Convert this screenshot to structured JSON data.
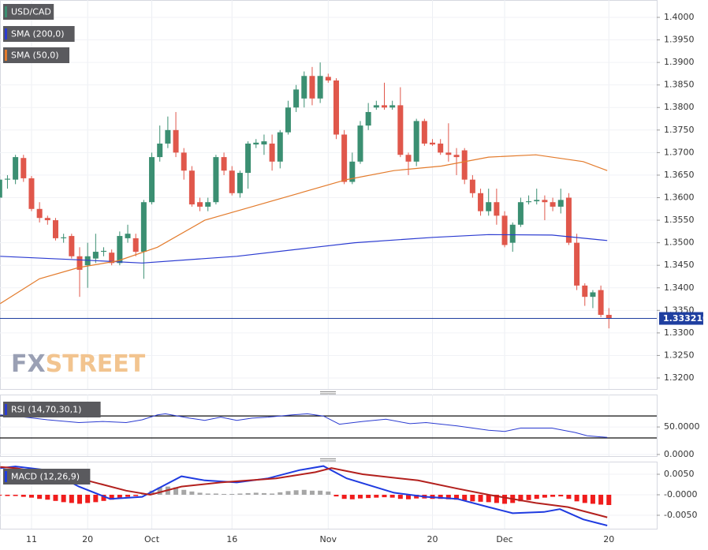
{
  "chart_data": [
    {
      "type": "candlestick",
      "name": "USD/CAD",
      "up_color": "#3b8f72",
      "down_color": "#e0574b",
      "open": [
        1.36,
        1.364,
        1.364,
        1.3688,
        1.3643,
        1.3575,
        1.3555,
        1.355,
        1.351,
        1.3515,
        1.347,
        1.345,
        1.3465,
        1.348,
        1.3478,
        1.3455,
        1.351,
        1.351,
        1.348,
        1.359,
        1.369,
        1.372,
        1.375,
        1.37,
        1.366,
        1.359,
        1.358,
        1.359,
        1.369,
        1.366,
        1.361,
        1.3655,
        1.3718,
        1.3718,
        1.372,
        1.368,
        1.3745,
        1.38,
        1.382,
        1.387,
        1.382,
        1.3868,
        1.386,
        1.374,
        1.3635,
        1.368,
        1.376,
        1.38,
        1.3805,
        1.38,
        1.3805,
        1.3695,
        1.368,
        1.377,
        1.3722,
        1.372,
        1.37,
        1.3695,
        1.3705,
        1.364,
        1.361,
        1.357,
        1.359,
        1.356,
        1.35,
        1.354,
        1.359,
        1.3592,
        1.3595,
        1.359,
        1.358,
        1.36,
        1.35,
        1.3405,
        1.338,
        1.3395,
        1.334
      ],
      "high": [
        1.365,
        1.365,
        1.3695,
        1.3695,
        1.3648,
        1.359,
        1.356,
        1.3555,
        1.352,
        1.352,
        1.349,
        1.35,
        1.352,
        1.349,
        1.3485,
        1.3525,
        1.354,
        1.352,
        1.3595,
        1.37,
        1.376,
        1.378,
        1.379,
        1.371,
        1.367,
        1.36,
        1.36,
        1.3695,
        1.37,
        1.367,
        1.366,
        1.3725,
        1.373,
        1.374,
        1.374,
        1.375,
        1.3815,
        1.385,
        1.388,
        1.389,
        1.39,
        1.3875,
        1.3865,
        1.375,
        1.37,
        1.377,
        1.381,
        1.3815,
        1.3855,
        1.3815,
        1.3845,
        1.37,
        1.3775,
        1.3775,
        1.373,
        1.373,
        1.3765,
        1.371,
        1.371,
        1.365,
        1.362,
        1.362,
        1.362,
        1.357,
        1.3545,
        1.36,
        1.3605,
        1.362,
        1.3605,
        1.36,
        1.362,
        1.361,
        1.352,
        1.341,
        1.3395,
        1.3405,
        1.3355
      ],
      "low": [
        1.359,
        1.362,
        1.363,
        1.3635,
        1.357,
        1.3545,
        1.354,
        1.3505,
        1.35,
        1.3465,
        1.338,
        1.34,
        1.3455,
        1.347,
        1.345,
        1.345,
        1.35,
        1.347,
        1.342,
        1.3585,
        1.368,
        1.371,
        1.369,
        1.364,
        1.358,
        1.357,
        1.357,
        1.3585,
        1.365,
        1.3605,
        1.36,
        1.362,
        1.371,
        1.3695,
        1.366,
        1.3665,
        1.374,
        1.379,
        1.38,
        1.3805,
        1.381,
        1.3855,
        1.373,
        1.363,
        1.363,
        1.3675,
        1.375,
        1.3795,
        1.3795,
        1.3795,
        1.369,
        1.365,
        1.367,
        1.3715,
        1.3715,
        1.3695,
        1.368,
        1.365,
        1.363,
        1.36,
        1.356,
        1.356,
        1.354,
        1.349,
        1.348,
        1.3535,
        1.3585,
        1.3585,
        1.355,
        1.357,
        1.3565,
        1.3495,
        1.3395,
        1.336,
        1.3355,
        1.3335,
        1.331
      ],
      "close": [
        1.364,
        1.3642,
        1.369,
        1.3643,
        1.3575,
        1.3555,
        1.355,
        1.351,
        1.3512,
        1.347,
        1.344,
        1.347,
        1.348,
        1.3482,
        1.3455,
        1.3515,
        1.352,
        1.348,
        1.359,
        1.369,
        1.372,
        1.375,
        1.37,
        1.366,
        1.3585,
        1.358,
        1.359,
        1.369,
        1.366,
        1.361,
        1.3655,
        1.372,
        1.3722,
        1.3725,
        1.368,
        1.3745,
        1.38,
        1.384,
        1.387,
        1.382,
        1.387,
        1.386,
        1.374,
        1.3635,
        1.368,
        1.376,
        1.379,
        1.3805,
        1.38,
        1.3805,
        1.3695,
        1.368,
        1.377,
        1.372,
        1.3718,
        1.37,
        1.3695,
        1.369,
        1.364,
        1.361,
        1.357,
        1.359,
        1.356,
        1.3495,
        1.354,
        1.359,
        1.3592,
        1.3595,
        1.359,
        1.358,
        1.3595,
        1.35,
        1.3405,
        1.338,
        1.339,
        1.334,
        1.3332
      ],
      "overlays": [
        {
          "name": "SMA (200,0)",
          "color": "#2b3bd1",
          "x": [
            0.1,
            9.9,
            17.8,
            29.6,
            39.4,
            44.3,
            54.1,
            61,
            68.9,
            75.8
          ],
          "values": [
            1.347,
            1.3462,
            1.3455,
            1.347,
            1.349,
            1.35,
            1.3512,
            1.3518,
            1.3517,
            1.3505
          ]
        },
        {
          "name": "SMA (50,0)",
          "color": "#e37b2c",
          "x": [
            0.1,
            5,
            9.9,
            14.8,
            19.7,
            25.6,
            31.5,
            37.4,
            43.3,
            49.2,
            55.1,
            61,
            66.9,
            72.8,
            75.8
          ],
          "values": [
            1.3365,
            1.342,
            1.3445,
            1.346,
            1.349,
            1.355,
            1.358,
            1.361,
            1.364,
            1.366,
            1.367,
            1.369,
            1.3695,
            1.368,
            1.366
          ]
        }
      ],
      "last_price": 1.33321,
      "last_price_label": "1.333210",
      "last_price_color": "#1f3fa0",
      "watermark": [
        "FX",
        "STREET"
      ],
      "xlim": [
        0.07,
        81.97
      ],
      "ylim": [
        1.31755,
        1.40385
      ],
      "yticks": [
        {
          "value": 1.4,
          "label": "1.4000"
        },
        {
          "value": 1.395,
          "label": "1.3950"
        },
        {
          "value": 1.39,
          "label": "1.3900"
        },
        {
          "value": 1.385,
          "label": "1.3850"
        },
        {
          "value": 1.38,
          "label": "1.3800"
        },
        {
          "value": 1.375,
          "label": "1.3750"
        },
        {
          "value": 1.37,
          "label": "1.3700"
        },
        {
          "value": 1.365,
          "label": "1.3650"
        },
        {
          "value": 1.36,
          "label": "1.3600"
        },
        {
          "value": 1.355,
          "label": "1.3550"
        },
        {
          "value": 1.35,
          "label": "1.3500"
        },
        {
          "value": 1.345,
          "label": "1.3450"
        },
        {
          "value": 1.34,
          "label": "1.3400"
        },
        {
          "value": 1.335,
          "label": "1.3350"
        },
        {
          "value": 1.33,
          "label": "1.3300"
        },
        {
          "value": 1.325,
          "label": "1.3250"
        },
        {
          "value": 1.32,
          "label": "1.3200"
        }
      ],
      "xticks": [
        {
          "value": 4,
          "label": "11"
        },
        {
          "value": 11,
          "label": "20"
        },
        {
          "value": 19,
          "label": "Oct"
        },
        {
          "value": 29,
          "label": "16"
        },
        {
          "value": 41,
          "label": "Nov"
        },
        {
          "value": 54,
          "label": "20"
        },
        {
          "value": 63,
          "label": "Dec"
        },
        {
          "value": 76,
          "label": "20"
        }
      ]
    },
    {
      "type": "line",
      "title": "RSI (14,70,30,1)",
      "series": [
        {
          "color": "#2b3bd1",
          "x": [
            0.1,
            2,
            6,
            9.9,
            12.9,
            15.8,
            17.8,
            19.7,
            20.7,
            23.7,
            25.6,
            27.6,
            29.6,
            31.5,
            33.5,
            36.5,
            38.4,
            40.4,
            42.4,
            45.3,
            48.2,
            51.2,
            53.2,
            57.1,
            61,
            63,
            65,
            68.9,
            71.8,
            73.3,
            75.8
          ],
          "values": [
            72,
            70,
            63,
            58,
            60,
            58,
            63,
            72,
            74,
            66,
            62,
            68,
            62,
            66,
            68,
            72,
            74,
            70,
            55,
            60,
            64,
            56,
            58,
            52,
            44,
            42,
            48,
            48,
            40,
            34,
            31
          ]
        }
      ],
      "levels": [
        70,
        30
      ],
      "ylim": [
        -3,
        109
      ],
      "yticks": [
        {
          "value": 50,
          "label": "50.0000"
        },
        {
          "value": 0,
          "label": "0.0000"
        }
      ]
    },
    {
      "type": "macd",
      "title": "MACD (12,26,9)",
      "series": [
        {
          "color": "#1f3be0",
          "x": [
            0.1,
            2,
            6,
            9.9,
            13.8,
            17.8,
            22.7,
            25.6,
            29.6,
            33.5,
            37.4,
            40.4,
            43.3,
            49.2,
            53.2,
            57.1,
            61,
            64,
            67.9,
            69.9,
            72.8,
            75.8
          ],
          "values": [
            0.0065,
            0.0069,
            0.006,
            0.002,
            -0.001,
            -0.0005,
            0.0045,
            0.0035,
            0.003,
            0.004,
            0.006,
            0.007,
            0.004,
            0.0005,
            -0.0005,
            -0.001,
            -0.003,
            -0.0045,
            -0.0042,
            -0.0035,
            -0.006,
            -0.0075
          ]
        },
        {
          "color": "#b3201d",
          "x": [
            0.1,
            2,
            9.9,
            15.8,
            18.8,
            22.7,
            27.6,
            34.5,
            39.4,
            41.4,
            45.3,
            52.2,
            57.1,
            61,
            66.9,
            70.9,
            75.8
          ],
          "values": [
            0.0068,
            0.0065,
            0.004,
            0.001,
            0.0,
            0.002,
            0.003,
            0.004,
            0.0055,
            0.0065,
            0.005,
            0.0035,
            0.0015,
            0.0,
            -0.002,
            -0.003,
            -0.0055
          ]
        }
      ],
      "histogram": {
        "up_color": "#a6a6a6",
        "down_color": "#f01c1c",
        "values": [
          -0.0002,
          -0.0003,
          -0.0003,
          -0.0005,
          -0.0007,
          -0.001,
          -0.0012,
          -0.0015,
          -0.0018,
          -0.002,
          -0.0022,
          -0.002,
          -0.0018,
          -0.0015,
          -0.0012,
          -0.0008,
          -0.0005,
          -0.0003,
          0.0003,
          0.001,
          0.0018,
          0.002,
          0.0018,
          0.0012,
          0.0008,
          0.0005,
          0.0003,
          0.0003,
          0.0002,
          0.0002,
          0.0003,
          0.0004,
          0.0005,
          0.0004,
          0.0003,
          0.0006,
          0.0009,
          0.0011,
          0.0012,
          0.001,
          0.001,
          0.0008,
          -0.0004,
          -0.001,
          -0.0011,
          -0.0009,
          -0.0008,
          -0.0007,
          -0.0006,
          -0.0007,
          -0.001,
          -0.0011,
          -0.0009,
          -0.0009,
          -0.001,
          -0.001,
          -0.0011,
          -0.0012,
          -0.0014,
          -0.0016,
          -0.0017,
          -0.0018,
          -0.002,
          -0.0022,
          -0.002,
          -0.0016,
          -0.0013,
          -0.001,
          -0.0007,
          -0.0005,
          -0.0004,
          -0.001,
          -0.0016,
          -0.002,
          -0.0022,
          -0.0024,
          -0.0025
        ]
      },
      "ylim": [
        -0.00827,
        0.00808
      ],
      "yticks": [
        {
          "value": 0.005,
          "label": "0.0050"
        },
        {
          "value": 0,
          "label": "-0.0000"
        },
        {
          "value": -0.005,
          "label": "-0.0050"
        }
      ]
    }
  ]
}
